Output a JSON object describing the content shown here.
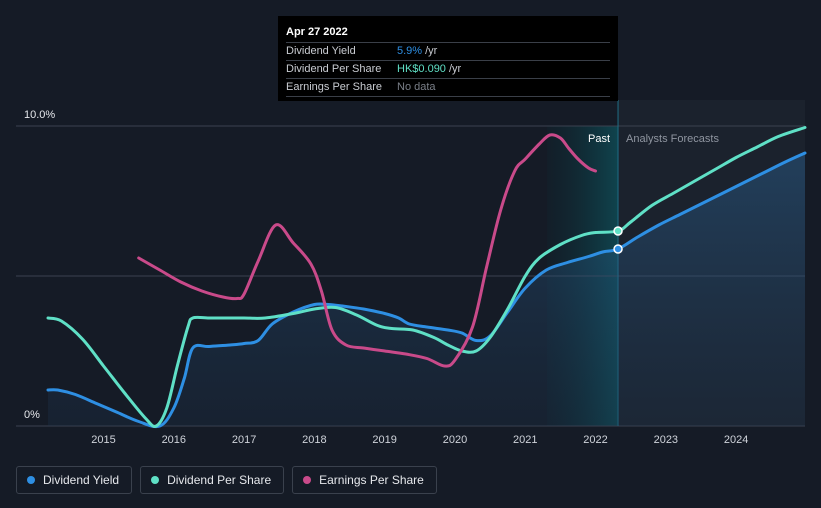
{
  "chart_data": {
    "type": "line",
    "x_ticks": [
      "2015",
      "2016",
      "2017",
      "2018",
      "2019",
      "2020",
      "2021",
      "2022",
      "2023",
      "2024"
    ],
    "y_ticks": [
      "0%",
      "10.0%"
    ],
    "ylim": [
      0,
      10
    ],
    "xlim": [
      2014.21,
      2024.98
    ],
    "grid": "horizontal",
    "legend_position": "bottom-left",
    "past_label": "Past",
    "forecast_label": "Analysts Forecasts",
    "past_band": [
      2021.31,
      2022.32
    ],
    "series": [
      {
        "name": "Dividend Yield",
        "color": "#2e8fe3",
        "unit": "%",
        "area": true,
        "x": [
          2014.21,
          2014.35,
          2014.6,
          2014.9,
          2015.2,
          2015.5,
          2015.8,
          2016.0,
          2016.15,
          2016.27,
          2016.5,
          2016.8,
          2017.0,
          2017.2,
          2017.4,
          2017.7,
          2018.0,
          2018.2,
          2018.4,
          2018.7,
          2019.0,
          2019.2,
          2019.35,
          2019.6,
          2019.9,
          2020.1,
          2020.3,
          2020.5,
          2020.75,
          2021.0,
          2021.3,
          2021.6,
          2021.9,
          2022.1,
          2022.32,
          2022.6,
          2022.9,
          2023.2,
          2023.5,
          2023.8,
          2024.1,
          2024.4,
          2024.7,
          2024.98
        ],
        "y": [
          1.2,
          1.2,
          1.05,
          0.75,
          0.45,
          0.15,
          0.0,
          0.6,
          1.6,
          2.6,
          2.65,
          2.7,
          2.75,
          2.85,
          3.4,
          3.8,
          4.05,
          4.05,
          4.0,
          3.9,
          3.75,
          3.6,
          3.4,
          3.3,
          3.2,
          3.1,
          2.85,
          3.0,
          3.8,
          4.6,
          5.2,
          5.45,
          5.65,
          5.8,
          5.9,
          6.3,
          6.7,
          7.05,
          7.4,
          7.75,
          8.1,
          8.45,
          8.8,
          9.1
        ]
      },
      {
        "name": "Dividend Per Share",
        "color": "#5fe0c6",
        "unit": "HK$",
        "area": false,
        "x": [
          2014.21,
          2014.4,
          2014.7,
          2015.0,
          2015.3,
          2015.6,
          2015.75,
          2015.9,
          2016.05,
          2016.2,
          2016.27,
          2016.5,
          2016.8,
          2017.0,
          2017.3,
          2017.7,
          2018.0,
          2018.3,
          2018.6,
          2018.9,
          2019.1,
          2019.4,
          2019.7,
          2019.9,
          2020.1,
          2020.3,
          2020.5,
          2020.75,
          2021.0,
          2021.2,
          2021.5,
          2021.8,
          2022.0,
          2022.32,
          2022.5,
          2022.8,
          2023.1,
          2023.4,
          2023.7,
          2024.0,
          2024.3,
          2024.6,
          2024.98
        ],
        "y": [
          3.6,
          3.5,
          2.9,
          2.0,
          1.1,
          0.25,
          0.0,
          0.6,
          2.0,
          3.3,
          3.6,
          3.6,
          3.6,
          3.6,
          3.6,
          3.75,
          3.9,
          3.95,
          3.7,
          3.35,
          3.25,
          3.2,
          2.95,
          2.7,
          2.5,
          2.5,
          2.95,
          3.9,
          5.0,
          5.6,
          6.05,
          6.35,
          6.45,
          6.5,
          6.8,
          7.35,
          7.75,
          8.15,
          8.55,
          8.95,
          9.3,
          9.65,
          9.95
        ]
      },
      {
        "name": "Earnings Per Share",
        "color": "#c94a8a",
        "unit": "",
        "area": false,
        "x": [
          2015.5,
          2015.8,
          2016.1,
          2016.4,
          2016.7,
          2016.9,
          2017.0,
          2017.2,
          2017.45,
          2017.7,
          2017.95,
          2018.1,
          2018.25,
          2018.45,
          2018.7,
          2019.0,
          2019.3,
          2019.6,
          2019.85,
          2020.0,
          2020.25,
          2020.45,
          2020.65,
          2020.85,
          2021.0,
          2021.2,
          2021.35,
          2021.5,
          2021.62,
          2021.75,
          2021.9,
          2022.0
        ],
        "y": [
          5.6,
          5.2,
          4.8,
          4.5,
          4.3,
          4.25,
          4.4,
          5.5,
          6.7,
          6.1,
          5.4,
          4.5,
          3.2,
          2.7,
          2.6,
          2.5,
          2.4,
          2.25,
          2.0,
          2.2,
          3.3,
          5.3,
          7.2,
          8.5,
          8.9,
          9.4,
          9.7,
          9.6,
          9.25,
          8.9,
          8.6,
          8.5
        ]
      }
    ],
    "highlight": {
      "x": 2022.32,
      "points": [
        {
          "series": "Dividend Yield",
          "y": 5.9
        },
        {
          "series": "Dividend Per Share",
          "y": 6.5
        }
      ]
    }
  },
  "tooltip": {
    "date": "Apr 27 2022",
    "rows": [
      {
        "label": "Dividend Yield",
        "value": "5.9%",
        "unit": "/yr",
        "color": "#2e8fe3"
      },
      {
        "label": "Dividend Per Share",
        "value": "HK$0.090",
        "unit": "/yr",
        "color": "#5fe0c6"
      },
      {
        "label": "Earnings Per Share",
        "value": "No data",
        "unit": "",
        "color": "#7a7f88"
      }
    ]
  },
  "legend": [
    {
      "label": "Dividend Yield",
      "color": "#2e8fe3"
    },
    {
      "label": "Dividend Per Share",
      "color": "#5fe0c6"
    },
    {
      "label": "Earnings Per Share",
      "color": "#c94a8a"
    }
  ],
  "colors": {
    "background": "#151b26",
    "forecast_background": "#1b222d",
    "grid": "#3b4250",
    "past_band": "#0f3a44"
  }
}
